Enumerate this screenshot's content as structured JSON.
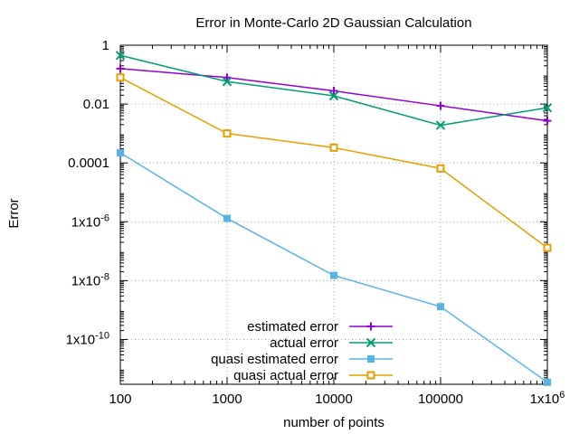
{
  "chart_data": {
    "type": "line",
    "title": "Error in Monte-Carlo 2D Gaussian Calculation",
    "xlabel": "number of points",
    "ylabel": "Error",
    "xscale": "log",
    "yscale": "log",
    "xlim": [
      100,
      1000000
    ],
    "ylim": [
      3e-12,
      1
    ],
    "grid": true,
    "legend_position": "bottom-right",
    "x_ticks": [
      100,
      1000,
      10000,
      100000,
      1000000
    ],
    "x_tick_labels": [
      "100",
      "1000",
      "10000",
      "100000",
      "1x10^6"
    ],
    "y_ticks": [
      1,
      0.01,
      0.0001,
      1e-06,
      1e-08,
      1e-10
    ],
    "y_tick_labels": [
      "1",
      "0.01",
      "0.0001",
      "1x10^-6",
      "1x10^-8",
      "1x10^-10"
    ],
    "x": [
      100,
      1000,
      10000,
      100000,
      1000000
    ],
    "series": [
      {
        "name": "estimated error",
        "color": "#9400d3",
        "marker": "plus",
        "values": [
          0.16,
          0.08,
          0.028,
          0.0087,
          0.0027
        ]
      },
      {
        "name": "actual error",
        "color": "#009e73",
        "marker": "cross",
        "values": [
          0.45,
          0.058,
          0.019,
          0.0019,
          0.0075
        ]
      },
      {
        "name": "quasi estimated error",
        "color": "#56b4e9",
        "marker": "square",
        "values": [
          0.00022,
          1.3e-06,
          1.5e-08,
          1.3e-09,
          3.5e-12
        ]
      },
      {
        "name": "quasi actual error",
        "color": "#e69f00",
        "marker": "square-open",
        "values": [
          0.08,
          0.001,
          0.00033,
          6.5e-05,
          1.3e-07
        ]
      }
    ]
  }
}
